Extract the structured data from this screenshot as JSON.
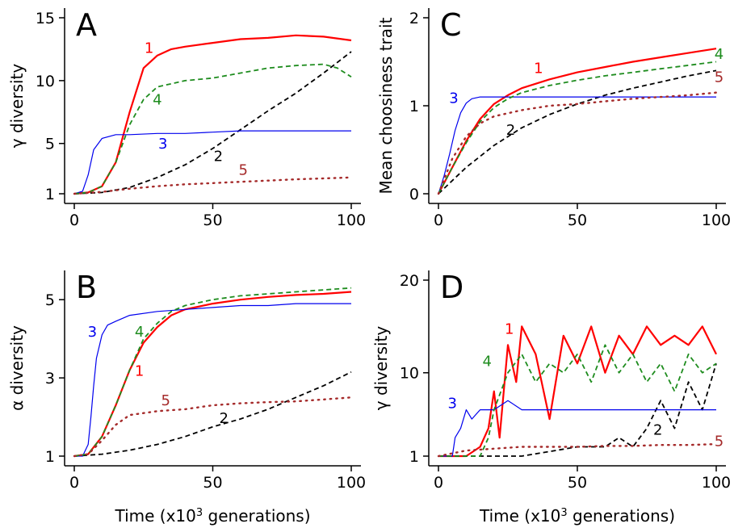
{
  "xlabel": "Time (x10",
  "xlabel_sup": "3",
  "xlabel_end": " generations)",
  "colors": {
    "1": "#ff0000",
    "2": "#000000",
    "3": "#0000ee",
    "4": "#1e8c1e",
    "5": "#a52a2a"
  },
  "chart_data": [
    {
      "id": "A",
      "type": "line",
      "panel": "A",
      "ylabel": "γ diversity",
      "xlim": [
        0,
        100
      ],
      "ylim": [
        1,
        15
      ],
      "xticks": [
        0,
        50,
        100
      ],
      "yticks": [
        1,
        5,
        10,
        15
      ],
      "series": [
        {
          "label": "1",
          "style": "solid-thick",
          "x": [
            0,
            5,
            10,
            15,
            20,
            25,
            30,
            35,
            40,
            50,
            60,
            70,
            80,
            90,
            100
          ],
          "y": [
            1,
            1.1,
            1.6,
            3.5,
            7.5,
            11,
            12,
            12.5,
            12.7,
            13,
            13.3,
            13.4,
            13.6,
            13.5,
            13.2
          ]
        },
        {
          "label": "2",
          "style": "dashed",
          "x": [
            0,
            10,
            20,
            30,
            40,
            50,
            60,
            70,
            80,
            90,
            100
          ],
          "y": [
            1,
            1.1,
            1.5,
            2.3,
            3.3,
            4.6,
            6.1,
            7.6,
            9,
            10.6,
            12.3
          ]
        },
        {
          "label": "3",
          "style": "solid-thin",
          "x": [
            0,
            3,
            5,
            7,
            10,
            15,
            20,
            30,
            40,
            50,
            60,
            70,
            80,
            90,
            100
          ],
          "y": [
            1,
            1.2,
            2.5,
            4.5,
            5.4,
            5.7,
            5.7,
            5.8,
            5.8,
            5.9,
            6,
            6,
            6,
            6,
            6
          ]
        },
        {
          "label": "4",
          "style": "dashed",
          "x": [
            0,
            5,
            10,
            15,
            20,
            25,
            30,
            40,
            50,
            60,
            70,
            80,
            90,
            95,
            100
          ],
          "y": [
            1,
            1.1,
            1.6,
            3.5,
            6.5,
            8.5,
            9.5,
            10,
            10.2,
            10.6,
            11,
            11.2,
            11.3,
            11,
            10.3
          ]
        },
        {
          "label": "5",
          "style": "dotted",
          "x": [
            0,
            10,
            20,
            30,
            40,
            50,
            60,
            70,
            80,
            90,
            100
          ],
          "y": [
            1,
            1.15,
            1.4,
            1.6,
            1.75,
            1.85,
            1.95,
            2.05,
            2.15,
            2.22,
            2.3
          ]
        }
      ],
      "labels": [
        {
          "text": "1",
          "series": "1",
          "x": 27,
          "y": 12.2
        },
        {
          "text": "4",
          "series": "4",
          "x": 30,
          "y": 8.1
        },
        {
          "text": "3",
          "series": "3",
          "x": 32,
          "y": 4.6
        },
        {
          "text": "2",
          "series": "2",
          "x": 52,
          "y": 3.6
        },
        {
          "text": "5",
          "series": "5",
          "x": 61,
          "y": 2.5
        }
      ]
    },
    {
      "id": "B",
      "type": "line",
      "panel": "B",
      "ylabel": "α diversity",
      "xlim": [
        0,
        100
      ],
      "ylim": [
        1,
        5.5
      ],
      "xticks": [
        0,
        50,
        100
      ],
      "yticks": [
        1,
        3,
        5
      ],
      "series": [
        {
          "label": "1",
          "style": "solid-thick",
          "x": [
            0,
            5,
            10,
            15,
            20,
            25,
            30,
            35,
            40,
            50,
            60,
            70,
            80,
            90,
            100
          ],
          "y": [
            1,
            1.05,
            1.5,
            2.3,
            3.2,
            3.9,
            4.3,
            4.6,
            4.75,
            4.9,
            5,
            5.07,
            5.12,
            5.15,
            5.2
          ]
        },
        {
          "label": "2",
          "style": "dashed",
          "x": [
            0,
            10,
            20,
            30,
            40,
            50,
            60,
            70,
            80,
            90,
            100
          ],
          "y": [
            1,
            1.05,
            1.15,
            1.3,
            1.5,
            1.75,
            1.95,
            2.2,
            2.5,
            2.8,
            3.15
          ]
        },
        {
          "label": "3",
          "style": "solid-thin",
          "x": [
            0,
            3,
            5,
            6,
            7,
            8,
            10,
            12,
            15,
            20,
            30,
            40,
            50,
            60,
            70,
            80,
            90,
            100
          ],
          "y": [
            1,
            1,
            1.3,
            2,
            2.8,
            3.5,
            4.1,
            4.35,
            4.45,
            4.6,
            4.7,
            4.75,
            4.8,
            4.85,
            4.85,
            4.9,
            4.9,
            4.9
          ]
        },
        {
          "label": "4",
          "style": "dashed",
          "x": [
            0,
            5,
            10,
            15,
            20,
            25,
            30,
            35,
            40,
            50,
            60,
            70,
            80,
            90,
            100
          ],
          "y": [
            1,
            1.05,
            1.5,
            2.3,
            3.2,
            4,
            4.4,
            4.7,
            4.85,
            5,
            5.1,
            5.15,
            5.2,
            5.25,
            5.3
          ]
        },
        {
          "label": "5",
          "style": "dotted",
          "x": [
            0,
            5,
            10,
            15,
            20,
            25,
            30,
            40,
            50,
            60,
            70,
            80,
            90,
            100
          ],
          "y": [
            1,
            1.05,
            1.4,
            1.8,
            2.05,
            2.1,
            2.15,
            2.2,
            2.3,
            2.35,
            2.38,
            2.4,
            2.45,
            2.5
          ]
        }
      ],
      "labels": [
        {
          "text": "3",
          "series": "3",
          "x": 6.5,
          "y": 4.05
        },
        {
          "text": "4",
          "series": "4",
          "x": 23.5,
          "y": 4.05
        },
        {
          "text": "1",
          "series": "1",
          "x": 23.5,
          "y": 3.05
        },
        {
          "text": "5",
          "series": "5",
          "x": 33,
          "y": 2.3
        },
        {
          "text": "2",
          "series": "2",
          "x": 54,
          "y": 1.85
        }
      ]
    },
    {
      "id": "C",
      "type": "line",
      "panel": "C",
      "ylabel": "Mean choosiness trait",
      "xlim": [
        0,
        100
      ],
      "ylim": [
        0,
        2
      ],
      "xticks": [
        0,
        50,
        100
      ],
      "yticks": [
        0,
        1,
        2
      ],
      "series": [
        {
          "label": "1",
          "style": "solid-thick",
          "x": [
            0,
            5,
            10,
            15,
            20,
            25,
            30,
            40,
            50,
            60,
            70,
            80,
            90,
            100
          ],
          "y": [
            0,
            0.3,
            0.6,
            0.85,
            1.02,
            1.12,
            1.2,
            1.3,
            1.38,
            1.44,
            1.5,
            1.55,
            1.6,
            1.65
          ]
        },
        {
          "label": "2",
          "style": "dashed",
          "x": [
            0,
            10,
            20,
            30,
            40,
            50,
            60,
            70,
            80,
            90,
            100
          ],
          "y": [
            0,
            0.3,
            0.55,
            0.75,
            0.9,
            1.02,
            1.12,
            1.2,
            1.27,
            1.34,
            1.4
          ]
        },
        {
          "label": "3",
          "style": "solid-thin",
          "x": [
            0,
            2,
            4,
            6,
            8,
            10,
            12,
            15,
            20,
            30,
            40,
            50,
            60,
            70,
            80,
            90,
            100
          ],
          "y": [
            0,
            0.2,
            0.45,
            0.72,
            0.92,
            1.03,
            1.08,
            1.1,
            1.1,
            1.1,
            1.1,
            1.1,
            1.1,
            1.1,
            1.1,
            1.1,
            1.1
          ]
        },
        {
          "label": "4",
          "style": "dashed",
          "x": [
            0,
            5,
            10,
            15,
            20,
            25,
            30,
            40,
            50,
            60,
            70,
            80,
            90,
            100
          ],
          "y": [
            0,
            0.3,
            0.58,
            0.82,
            0.98,
            1.08,
            1.15,
            1.23,
            1.29,
            1.34,
            1.38,
            1.42,
            1.46,
            1.5
          ]
        },
        {
          "label": "5",
          "style": "dotted",
          "x": [
            0,
            5,
            10,
            15,
            20,
            30,
            40,
            50,
            60,
            70,
            80,
            90,
            100
          ],
          "y": [
            0,
            0.4,
            0.65,
            0.8,
            0.88,
            0.95,
            1.0,
            1.02,
            1.05,
            1.08,
            1.1,
            1.12,
            1.15
          ]
        }
      ],
      "labels": [
        {
          "text": "1",
          "series": "1",
          "x": 36,
          "y": 1.37
        },
        {
          "text": "3",
          "series": "3",
          "x": 5.5,
          "y": 1.03
        },
        {
          "text": "2",
          "series": "2",
          "x": 26,
          "y": 0.67
        },
        {
          "text": "4",
          "series": "4",
          "x": 101,
          "y": 1.53
        },
        {
          "text": "5",
          "series": "5",
          "x": 101,
          "y": 1.27
        }
      ]
    },
    {
      "id": "D",
      "type": "line",
      "panel": "D",
      "ylabel": "γ diversity",
      "xlim": [
        0,
        100
      ],
      "ylim": [
        1,
        20
      ],
      "xticks": [
        0,
        50,
        100
      ],
      "yticks": [
        1,
        10,
        20
      ],
      "series": [
        {
          "label": "1",
          "style": "solid-thick",
          "x": [
            0,
            10,
            15,
            18,
            20,
            22,
            25,
            28,
            30,
            35,
            40,
            45,
            50,
            55,
            60,
            65,
            70,
            75,
            80,
            85,
            90,
            95,
            100
          ],
          "y": [
            1,
            1,
            2,
            4,
            8,
            3,
            13,
            9,
            15,
            12,
            5,
            14,
            11,
            15,
            10,
            14,
            12,
            15,
            13,
            14,
            13,
            15,
            12
          ]
        },
        {
          "label": "2",
          "style": "dashed",
          "x": [
            0,
            20,
            30,
            40,
            50,
            60,
            65,
            70,
            75,
            80,
            85,
            90,
            95,
            100
          ],
          "y": [
            1,
            1,
            1,
            1.5,
            2,
            2,
            3,
            2,
            4,
            7,
            4,
            9,
            6,
            11
          ]
        },
        {
          "label": "3",
          "style": "solid-thin",
          "x": [
            0,
            5,
            6,
            8,
            10,
            12,
            15,
            20,
            25,
            30,
            40,
            50,
            60,
            70,
            80,
            90,
            100
          ],
          "y": [
            1,
            1,
            3,
            4,
            6,
            5,
            6,
            6,
            7,
            6,
            6,
            6,
            6,
            6,
            6,
            6,
            6
          ]
        },
        {
          "label": "4",
          "style": "dashed",
          "x": [
            0,
            15,
            18,
            20,
            25,
            30,
            35,
            40,
            45,
            50,
            55,
            60,
            65,
            70,
            75,
            80,
            85,
            90,
            95,
            100
          ],
          "y": [
            1,
            1,
            3,
            6,
            10,
            12,
            9,
            11,
            10,
            12,
            9,
            13,
            10,
            12,
            9,
            11,
            8,
            12,
            10,
            11
          ]
        },
        {
          "label": "5",
          "style": "dotted",
          "x": [
            0,
            10,
            20,
            30,
            40,
            50,
            60,
            70,
            80,
            90,
            100
          ],
          "y": [
            1,
            1.6,
            1.8,
            2,
            2,
            2,
            2.1,
            2.1,
            2.2,
            2.2,
            2.3
          ]
        }
      ],
      "labels": [
        {
          "text": "1",
          "series": "1",
          "x": 25.5,
          "y": 14.2
        },
        {
          "text": "4",
          "series": "4",
          "x": 17.5,
          "y": 10.7
        },
        {
          "text": "3",
          "series": "3",
          "x": 5,
          "y": 6.2
        },
        {
          "text": "2",
          "series": "2",
          "x": 79,
          "y": 3.3
        },
        {
          "text": "5",
          "series": "5",
          "x": 101,
          "y": 2.1
        }
      ]
    }
  ]
}
